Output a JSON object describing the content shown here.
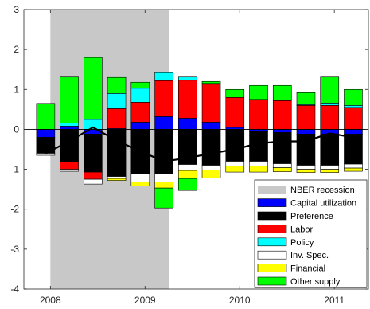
{
  "chart_data": {
    "type": "bar",
    "stacked": true,
    "x": [
      2007.95,
      2008.2,
      2008.45,
      2008.7,
      2008.95,
      2009.2,
      2009.45,
      2009.7,
      2009.95,
      2010.2,
      2010.45,
      2010.7,
      2010.95,
      2011.2
    ],
    "xticks": [
      2008,
      2009,
      2010,
      2011
    ],
    "xtick_labels": [
      "2008",
      "2009",
      "2010",
      "2011"
    ],
    "xlim": [
      2007.72,
      2011.36
    ],
    "ylim": [
      -4,
      3
    ],
    "yticks": [
      -4,
      -3,
      -2,
      -1,
      0,
      1,
      2,
      3
    ],
    "ytick_labels": [
      "-4",
      "-3",
      "-2",
      "-1",
      "0",
      "1",
      "2",
      "3"
    ],
    "grid": false,
    "legend_position": "bottom-right",
    "recession": {
      "name": "NBER recession",
      "x_start": 2008.0,
      "x_end": 2009.25,
      "color": "#c8c8c8"
    },
    "series": [
      {
        "name": "Capital utilization",
        "color": "#0000ff",
        "values": [
          -0.2,
          0.08,
          -0.12,
          0.02,
          0.18,
          0.32,
          0.28,
          0.18,
          0.05,
          -0.05,
          -0.08,
          -0.12,
          -0.12,
          -0.12
        ]
      },
      {
        "name": "Preference",
        "color": "#000000",
        "values": [
          -0.4,
          -0.82,
          -0.95,
          -1.18,
          -1.12,
          -1.12,
          -0.88,
          -0.9,
          -0.8,
          -0.75,
          -0.78,
          -0.78,
          -0.78,
          -0.75
        ]
      },
      {
        "name": "Labor",
        "color": "#ff0000",
        "values": [
          0.0,
          -0.18,
          -0.18,
          0.5,
          0.5,
          0.9,
          0.95,
          0.95,
          0.75,
          0.75,
          0.72,
          0.6,
          0.6,
          0.55
        ]
      },
      {
        "name": "Policy",
        "color": "#00ffff",
        "values": [
          0.0,
          0.08,
          0.25,
          0.38,
          0.35,
          0.2,
          0.08,
          0.02,
          0.0,
          0.0,
          0.0,
          0.02,
          0.06,
          0.05
        ]
      },
      {
        "name": "Inv. Spec.",
        "color": "#ffffff",
        "values": [
          -0.05,
          -0.05,
          -0.12,
          -0.05,
          -0.2,
          -0.2,
          -0.15,
          -0.12,
          -0.12,
          -0.12,
          -0.1,
          -0.1,
          -0.1,
          -0.1
        ]
      },
      {
        "name": "Financial",
        "color": "#ffff00",
        "values": [
          0.0,
          0.0,
          0.0,
          -0.05,
          -0.1,
          -0.15,
          -0.2,
          -0.2,
          -0.15,
          -0.15,
          -0.1,
          -0.08,
          -0.08,
          -0.08
        ]
      },
      {
        "name": "Other supply",
        "color": "#00ff00",
        "values": [
          0.65,
          1.15,
          1.55,
          0.4,
          0.15,
          -0.5,
          -0.3,
          0.05,
          0.2,
          0.35,
          0.38,
          0.3,
          0.65,
          0.4
        ]
      }
    ],
    "line": {
      "color": "#000000",
      "values": [
        -0.6,
        -0.3,
        0.05,
        -0.28,
        -0.55,
        -0.8,
        -0.72,
        -0.6,
        -0.5,
        -0.35,
        -0.3,
        -0.3,
        -0.1,
        -0.2
      ]
    }
  }
}
